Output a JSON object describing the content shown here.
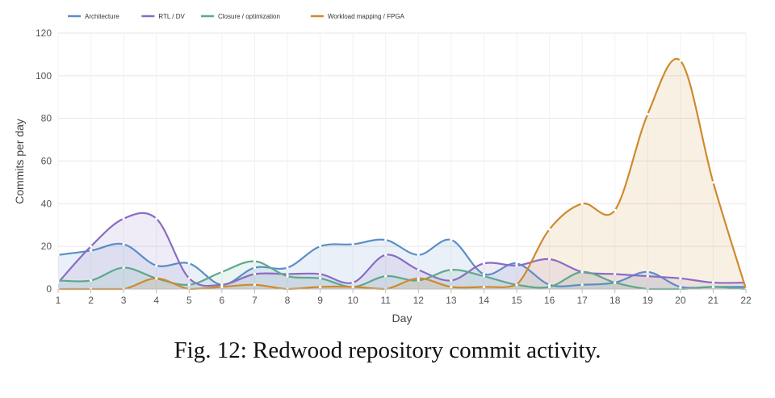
{
  "caption": "Fig. 12: Redwood repository commit activity.",
  "chart_data": {
    "type": "area",
    "xlabel": "Day",
    "ylabel": "Commits per day",
    "ylim": [
      0,
      120
    ],
    "y_ticks": [
      0,
      20,
      40,
      60,
      80,
      100,
      120
    ],
    "x": [
      1,
      2,
      3,
      4,
      5,
      6,
      7,
      8,
      9,
      10,
      11,
      12,
      13,
      14,
      15,
      16,
      17,
      18,
      19,
      20,
      21,
      22
    ],
    "grid": true,
    "legend_position": "top-left",
    "series": [
      {
        "name": "Architecture",
        "color": "#5b8ec7",
        "values": [
          16,
          18,
          21,
          11,
          12,
          2,
          10,
          10,
          20,
          21,
          23,
          16,
          23,
          7,
          12,
          2,
          2,
          3,
          8,
          1,
          1,
          1
        ]
      },
      {
        "name": "RTL / DV",
        "color": "#8a6cc4",
        "values": [
          3,
          20,
          33,
          33,
          5,
          2,
          7,
          7,
          7,
          3,
          16,
          9,
          4,
          12,
          11,
          14,
          8,
          7,
          6,
          5,
          3,
          3
        ]
      },
      {
        "name": "Closure / optimization",
        "color": "#5ea88a",
        "values": [
          4,
          4,
          10,
          5,
          2,
          8,
          13,
          6,
          5,
          1,
          6,
          4,
          9,
          6,
          2,
          1,
          8,
          3,
          0,
          0,
          1,
          0
        ]
      },
      {
        "name": "Workload mapping / FPGA",
        "color": "#cf8a2e",
        "values": [
          0,
          0,
          0,
          5,
          0,
          1,
          2,
          0,
          1,
          1,
          0,
          5,
          1,
          1,
          2,
          28,
          40,
          37,
          82,
          107,
          50,
          0
        ]
      }
    ]
  }
}
